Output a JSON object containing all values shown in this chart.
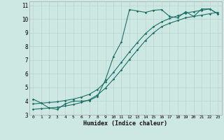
{
  "xlabel": "Humidex (Indice chaleur)",
  "background_color": "#cde8e2",
  "grid_color": "#b8d4ce",
  "line_color": "#1e7068",
  "xlim_min": -0.5,
  "xlim_max": 23.5,
  "ylim_min": 3.0,
  "ylim_max": 11.3,
  "xticks": [
    0,
    1,
    2,
    3,
    4,
    5,
    6,
    7,
    8,
    9,
    10,
    11,
    12,
    13,
    14,
    15,
    16,
    17,
    18,
    19,
    20,
    21,
    22,
    23
  ],
  "yticks": [
    3,
    4,
    5,
    6,
    7,
    8,
    9,
    10,
    11
  ],
  "line1_x": [
    0,
    1,
    2,
    3,
    4,
    5,
    6,
    7,
    8,
    9,
    10,
    11,
    12,
    13,
    14,
    15,
    16,
    17,
    18,
    19,
    20,
    21,
    22,
    23
  ],
  "line1_y": [
    4.15,
    3.85,
    3.5,
    3.4,
    3.8,
    4.0,
    4.0,
    4.05,
    4.35,
    5.55,
    7.25,
    8.35,
    10.7,
    10.6,
    10.5,
    10.65,
    10.7,
    10.2,
    10.1,
    10.55,
    10.2,
    10.75,
    10.75,
    10.4
  ],
  "line2_x": [
    0,
    1,
    2,
    3,
    4,
    5,
    6,
    7,
    8,
    9,
    10,
    11,
    12,
    13,
    14,
    15,
    16,
    17,
    18,
    19,
    20,
    21,
    22,
    23
  ],
  "line2_y": [
    3.8,
    3.85,
    3.9,
    3.95,
    4.05,
    4.15,
    4.3,
    4.5,
    4.85,
    5.4,
    6.1,
    6.85,
    7.6,
    8.3,
    8.95,
    9.45,
    9.8,
    10.05,
    10.25,
    10.45,
    10.55,
    10.65,
    10.75,
    10.4
  ],
  "line3_x": [
    0,
    1,
    2,
    3,
    4,
    5,
    6,
    7,
    8,
    9,
    10,
    11,
    12,
    13,
    14,
    15,
    16,
    17,
    18,
    19,
    20,
    21,
    22,
    23
  ],
  "line3_y": [
    3.4,
    3.45,
    3.5,
    3.55,
    3.65,
    3.75,
    3.9,
    4.1,
    4.45,
    4.95,
    5.6,
    6.3,
    7.05,
    7.75,
    8.45,
    9.0,
    9.45,
    9.7,
    9.9,
    10.1,
    10.2,
    10.3,
    10.4,
    10.5
  ]
}
